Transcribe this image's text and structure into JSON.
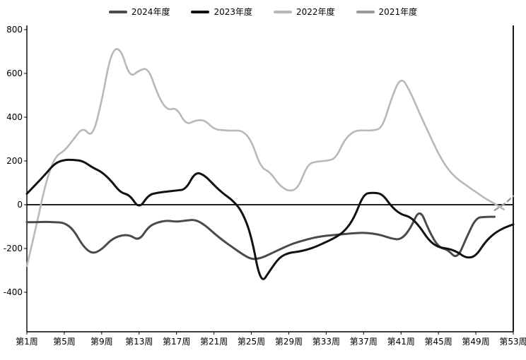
{
  "chart_data": {
    "type": "line",
    "title": "",
    "legend_position": "top",
    "weeks": 53,
    "ylim": [
      -400,
      800
    ],
    "y_ticks": [
      800,
      600,
      400,
      200,
      0,
      -200,
      -400
    ],
    "x_tick_weeks": [
      1,
      5,
      9,
      13,
      17,
      21,
      25,
      29,
      33,
      37,
      41,
      45,
      49,
      53
    ],
    "x_tick_labels": [
      "第1周",
      "第5周",
      "第9周",
      "第13周",
      "第17周",
      "第21周",
      "第25周",
      "第29周",
      "第33周",
      "第37周",
      "第41周",
      "第45周",
      "第49周",
      "第53周"
    ],
    "series": [
      {
        "name": "2024年度",
        "color": "#4a4a4a",
        "dash": "none",
        "values": [
          -80,
          -80,
          -78,
          -80,
          -82,
          -115,
          -190,
          -225,
          -205,
          -160,
          -140,
          -138,
          -165,
          -100,
          -80,
          -72,
          -78,
          -72,
          -68,
          -92,
          -130,
          -165,
          -195,
          -225,
          -250,
          -245,
          -225,
          -205,
          -185,
          -170,
          -158,
          -148,
          -142,
          -138,
          -134,
          -130,
          -128,
          -132,
          -140,
          -155,
          -160,
          -110,
          -15,
          -120,
          -195,
          -205,
          -250,
          -150,
          -60,
          -55,
          -55,
          null,
          null
        ]
      },
      {
        "name": "2023年度",
        "color": "#111111",
        "dash": "none",
        "values": [
          50,
          95,
          140,
          190,
          205,
          205,
          200,
          170,
          150,
          110,
          55,
          45,
          -20,
          45,
          55,
          60,
          65,
          70,
          150,
          135,
          90,
          50,
          20,
          -30,
          -140,
          -365,
          -300,
          -240,
          -220,
          -215,
          -205,
          -190,
          -170,
          -150,
          -120,
          -60,
          50,
          55,
          50,
          -10,
          -45,
          -55,
          -100,
          -165,
          -195,
          -200,
          -215,
          -245,
          -235,
          -170,
          -130,
          -105,
          -90
        ]
      },
      {
        "name": "2022年度",
        "color": "#b8b8b8",
        "dash": "none",
        "values": [
          -280,
          -100,
          100,
          220,
          245,
          300,
          355,
          305,
          470,
          700,
          720,
          580,
          615,
          625,
          500,
          430,
          445,
          365,
          385,
          388,
          345,
          340,
          338,
          340,
          295,
          170,
          150,
          88,
          60,
          75,
          185,
          198,
          200,
          210,
          300,
          338,
          340,
          338,
          350,
          490,
          588,
          515,
          415,
          325,
          232,
          162,
          118,
          88,
          58,
          28,
          5,
          -22,
          null
        ]
      },
      {
        "name": "2021年度",
        "color": "#9a9a9a",
        "dash": "6 5",
        "values": [
          null,
          null,
          null,
          null,
          null,
          null,
          null,
          null,
          null,
          null,
          null,
          null,
          null,
          null,
          null,
          null,
          null,
          null,
          null,
          null,
          null,
          null,
          null,
          null,
          null,
          null,
          null,
          null,
          null,
          null,
          null,
          null,
          null,
          null,
          null,
          null,
          null,
          null,
          null,
          null,
          null,
          null,
          null,
          null,
          null,
          null,
          null,
          null,
          null,
          null,
          -25,
          0,
          40
        ]
      }
    ]
  }
}
